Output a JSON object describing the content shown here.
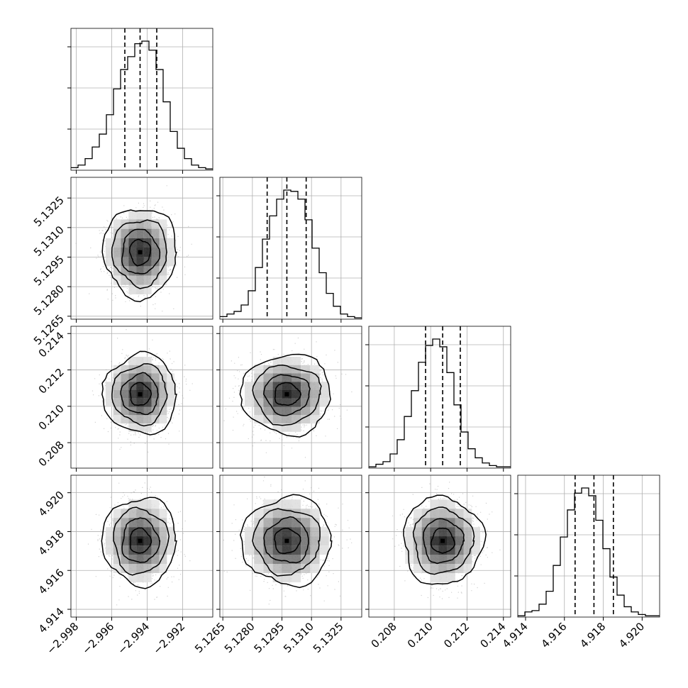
{
  "chart_data": {
    "type": "corner",
    "parameters": [
      {
        "ticks": [
          -2.998,
          -2.996,
          -2.994,
          -2.992
        ],
        "tick_labels": [
          "−2.998",
          "−2.996",
          "−2.994",
          "−2.992"
        ],
        "range": [
          -2.9983,
          -2.9903
        ],
        "quantiles": [
          -2.99526,
          -2.9944,
          -2.99346
        ],
        "hist": {
          "edges_start": -2.9983,
          "bin_width": 0.0004,
          "counts": [
            0.02,
            0.04,
            0.09,
            0.18,
            0.28,
            0.43,
            0.63,
            0.78,
            0.88,
            0.98,
            1.0,
            0.93,
            0.78,
            0.53,
            0.3,
            0.17,
            0.09,
            0.04,
            0.02,
            0.01
          ]
        }
      },
      {
        "ticks": [
          5.1265,
          5.128,
          5.1295,
          5.131,
          5.1325
        ],
        "tick_labels": [
          "5.1265",
          "5.1280",
          "5.1295",
          "5.1310",
          "5.1325"
        ],
        "range": [
          5.12635,
          5.13355
        ],
        "quantiles": [
          5.12875,
          5.12975,
          5.13073
        ],
        "hist": {
          "edges_start": 5.12635,
          "bin_width": 0.00036,
          "counts": [
            0.02,
            0.04,
            0.06,
            0.11,
            0.22,
            0.4,
            0.62,
            0.8,
            0.93,
            1.0,
            0.99,
            0.93,
            0.77,
            0.55,
            0.36,
            0.2,
            0.1,
            0.04,
            0.02,
            0.01
          ]
        }
      },
      {
        "ticks": [
          0.208,
          0.21,
          0.212,
          0.214
        ],
        "tick_labels": [
          "0.208",
          "0.210",
          "0.212",
          "0.214"
        ],
        "range": [
          0.2066,
          0.2144
        ],
        "quantiles": [
          0.20972,
          0.21066,
          0.21163
        ],
        "hist": {
          "edges_start": 0.2066,
          "bin_width": 0.00039,
          "counts": [
            0.01,
            0.03,
            0.05,
            0.11,
            0.22,
            0.4,
            0.6,
            0.82,
            0.95,
            1.0,
            0.94,
            0.74,
            0.49,
            0.28,
            0.15,
            0.08,
            0.04,
            0.02,
            0.01,
            0.01
          ]
        }
      },
      {
        "ticks": [
          4.914,
          4.916,
          4.918,
          4.92
        ],
        "tick_labels": [
          "4.914",
          "4.916",
          "4.918",
          "4.920"
        ],
        "range": [
          4.9136,
          4.9209
        ],
        "quantiles": [
          4.91655,
          4.91752,
          4.91852
        ],
        "hist": {
          "edges_start": 4.9136,
          "bin_width": 0.000365,
          "counts": [
            0.01,
            0.04,
            0.05,
            0.1,
            0.2,
            0.4,
            0.62,
            0.83,
            0.96,
            1.0,
            0.94,
            0.75,
            0.53,
            0.31,
            0.17,
            0.08,
            0.04,
            0.02,
            0.01,
            0.01
          ]
        }
      }
    ],
    "correlation": 0,
    "levels_sigma": [
      0.5,
      1.0,
      1.5,
      2.0
    ],
    "colors": {
      "line": "#000000",
      "grid": "#b0b0b0",
      "points": "#9a9a9a"
    },
    "grid": true
  }
}
